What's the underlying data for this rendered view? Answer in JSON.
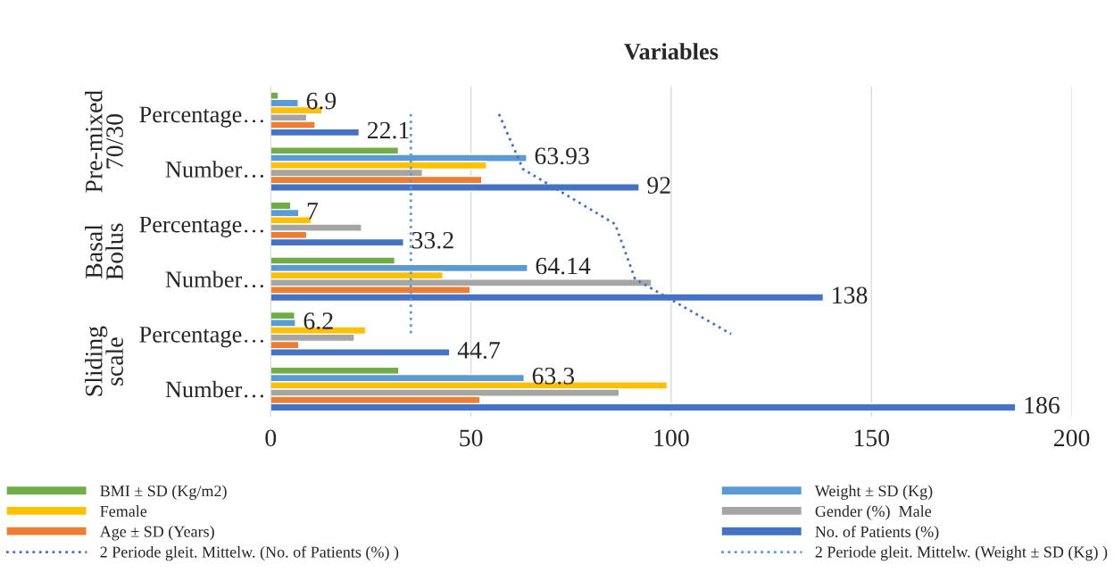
{
  "chart_data": {
    "type": "bar",
    "orientation": "horizontal",
    "title": "Variables",
    "categories": [
      "Percentage…",
      "Number…",
      "Percentage…",
      "Number…",
      "Percentage…",
      "Number…"
    ],
    "annotations": [
      "Pre-mixed 70/30",
      "Basal Bolus",
      "Sliding scale"
    ],
    "xlim": [
      0,
      200
    ],
    "xticks": [
      0,
      50,
      100,
      150,
      200
    ],
    "grid": "x",
    "legend": "bottom",
    "series": [
      {
        "name": "BMI ± SD (Kg/m2)",
        "color": "#70ad47",
        "values": [
          1.9,
          31.9,
          5.0,
          31.0,
          6.0,
          32.0
        ]
      },
      {
        "name": "Weight ± SD (Kg)",
        "color": "#5b9bd5",
        "values": [
          6.9,
          63.93,
          7,
          64.14,
          6.2,
          63.3
        ],
        "value_labels": [
          "6.9",
          "63.93",
          "7",
          "64.14",
          "6.2",
          "63.3"
        ]
      },
      {
        "name": "Female",
        "color": "#ffc000",
        "values": [
          12.8,
          53.9,
          10.1,
          43.0,
          23.7,
          99.0
        ]
      },
      {
        "name": "Gender (%)  Male",
        "color": "#a5a5a5",
        "values": [
          9.0,
          37.9,
          22.7,
          95.1,
          20.9,
          87.0
        ]
      },
      {
        "name": "Age ± SD (Years)",
        "color": "#ed7d31",
        "values": [
          11.1,
          52.7,
          9.0,
          49.8,
          7.0,
          52.3
        ]
      },
      {
        "name": "No. of Patients (%)",
        "color": "#4472c4",
        "values": [
          22.1,
          92,
          33.2,
          138,
          44.7,
          186
        ],
        "value_labels": [
          "22.1",
          "92",
          "33.2",
          "138",
          "44.7",
          "186"
        ]
      },
      {
        "name": "2 Periode gleit. Mittelw. (No. of Patients (%) )",
        "type": "line",
        "color": "#4472c4",
        "line_style": "dotted",
        "marker": "none",
        "values": [
          57,
          63,
          86,
          91,
          115,
          null
        ]
      },
      {
        "name": "2 Periode gleit. Mittelw. (Weight ± SD (Kg) )",
        "type": "line",
        "color": "#5b9bd5",
        "line_style": "dotted",
        "marker": "none",
        "values": [
          35,
          35,
          35,
          35,
          35,
          null
        ]
      }
    ]
  }
}
